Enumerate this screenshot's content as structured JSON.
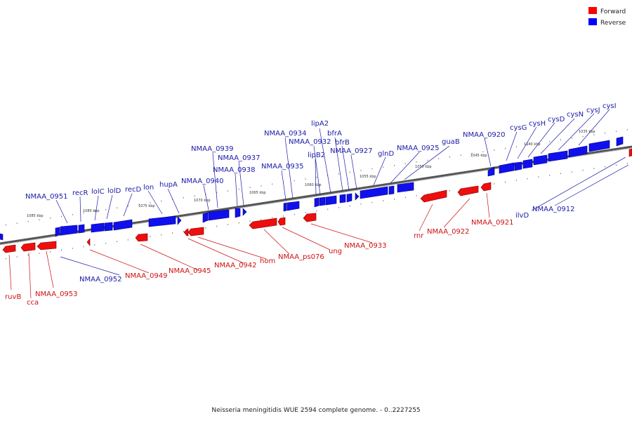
{
  "caption": "Neisseria meningitidis WUE 2594 complete genome. - 0..2227255",
  "legend": [
    {
      "label": "Forward",
      "color": "#ff0000"
    },
    {
      "label": "Reverse",
      "color": "#0000ff"
    }
  ],
  "colors": {
    "forward": "#ff0000",
    "reverse": "#0000ff",
    "backbone": "#666666"
  },
  "kbp_labels": [
    "1085 kbp",
    "1080 kbp",
    "1075 kbp",
    "1070 kbp",
    "1065 kbp",
    "1060 kbp",
    "1055 kbp",
    "1050 kbp",
    "1045 kbp",
    "1040 kbp",
    "1035 kbp"
  ],
  "reverse_labels": [
    "NMAA_0951",
    "recR",
    "lolC",
    "lolD",
    "recD",
    "lon",
    "hupA",
    "NMAA_0940",
    "NMAA_0939",
    "NMAA_0937",
    "NMAA_0938",
    "NMAA_0935",
    "NMAA_0934",
    "NMAA_0932",
    "lipA2",
    "bfrA",
    "bfrB",
    "lipB2",
    "NMAA_0927",
    "glnD",
    "NMAA_0925",
    "guaB",
    "NMAA_0920",
    "cysG",
    "cysH",
    "cysD",
    "cysN",
    "cysJ",
    "cysI",
    "ilvD",
    "NMAA_0912",
    "NMAA_0952"
  ],
  "forward_labels": [
    "ruvB",
    "cca",
    "NMAA_0953",
    "NMAA_0949",
    "NMAA_0945",
    "NMAA_0942",
    "hom",
    "NMAA_ps076",
    "ung",
    "NMAA_0933",
    "rnr",
    "NMAA_0922",
    "NMAA_0921"
  ]
}
